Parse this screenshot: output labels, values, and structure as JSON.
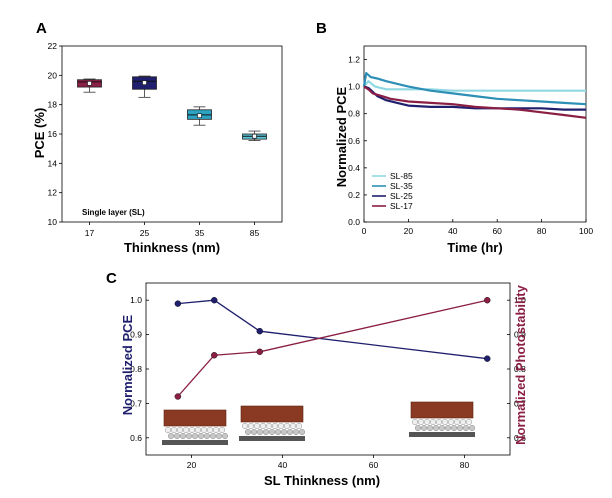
{
  "chart_data": [
    {
      "panel": "A",
      "type": "box",
      "xlabel": "Thinkness (nm)",
      "ylabel": "PCE (%)",
      "annotation": "Single layer (SL)",
      "categories": [
        "17",
        "25",
        "35",
        "85"
      ],
      "ylim": [
        10,
        22
      ],
      "yticks": [
        "10",
        "12",
        "14",
        "16",
        "18",
        "20",
        "22"
      ],
      "boxes": [
        {
          "q1": 19.2,
          "median": 19.55,
          "q3": 19.7,
          "whisker_low": 18.85,
          "whisker_high": 19.75,
          "mean": 19.45,
          "color": "#8b1e45"
        },
        {
          "q1": 19.05,
          "median": 19.6,
          "q3": 19.9,
          "whisker_low": 18.5,
          "whisker_high": 19.95,
          "mean": 19.5,
          "color": "#1f1f6e"
        },
        {
          "q1": 17.0,
          "median": 17.3,
          "q3": 17.65,
          "whisker_low": 16.6,
          "whisker_high": 17.85,
          "mean": 17.25,
          "color": "#2da3c4"
        },
        {
          "q1": 15.65,
          "median": 15.85,
          "q3": 16.0,
          "whisker_low": 15.55,
          "whisker_high": 16.2,
          "mean": 15.85,
          "color": "#5bc4d6"
        }
      ]
    },
    {
      "panel": "B",
      "type": "line",
      "xlabel": "Time (hr)",
      "ylabel": "Normalized PCE",
      "xlim": [
        0,
        100
      ],
      "ylim": [
        0,
        1.3
      ],
      "xticks": [
        "0",
        "20",
        "40",
        "60",
        "80",
        "100"
      ],
      "yticks": [
        "0.0",
        "0.2",
        "0.4",
        "0.6",
        "0.8",
        "1.0",
        "1.2"
      ],
      "legend_position": "bottom-left",
      "series": [
        {
          "name": "SL-85",
          "color": "#8fd8e3",
          "x": [
            0,
            2,
            5,
            10,
            20,
            30,
            40,
            50,
            60,
            70,
            80,
            90,
            100
          ],
          "y": [
            1.0,
            1.04,
            1.0,
            0.98,
            0.98,
            0.98,
            0.97,
            0.97,
            0.97,
            0.97,
            0.97,
            0.97,
            0.97
          ]
        },
        {
          "name": "SL-35",
          "color": "#2d8fb5",
          "x": [
            0,
            1,
            3,
            6,
            10,
            20,
            30,
            40,
            50,
            60,
            70,
            80,
            90,
            100
          ],
          "y": [
            1.0,
            1.1,
            1.07,
            1.06,
            1.04,
            1.0,
            0.97,
            0.95,
            0.93,
            0.91,
            0.9,
            0.89,
            0.88,
            0.87
          ]
        },
        {
          "name": "SL-25",
          "color": "#1f1f6e",
          "x": [
            0,
            2,
            4,
            6,
            10,
            15,
            20,
            30,
            40,
            50,
            60,
            70,
            80,
            90,
            100
          ],
          "y": [
            1.0,
            0.99,
            0.96,
            0.93,
            0.9,
            0.88,
            0.86,
            0.85,
            0.85,
            0.84,
            0.84,
            0.84,
            0.84,
            0.83,
            0.83
          ]
        },
        {
          "name": "SL-17",
          "color": "#8b1e45",
          "x": [
            0,
            2,
            4,
            8,
            12,
            20,
            30,
            40,
            50,
            60,
            70,
            80,
            90,
            100
          ],
          "y": [
            1.0,
            0.98,
            0.95,
            0.93,
            0.91,
            0.89,
            0.88,
            0.87,
            0.85,
            0.84,
            0.83,
            0.81,
            0.79,
            0.77
          ]
        }
      ]
    },
    {
      "panel": "C",
      "type": "line",
      "xlabel": "SL Thinkness (nm)",
      "ylabel_left": "Normalized PCE",
      "ylabel_right": "Normalized Photostability",
      "xlim": [
        10,
        90
      ],
      "ylim_left": [
        0.55,
        1.05
      ],
      "ylim_right": [
        0.55,
        1.05
      ],
      "xticks": [
        "20",
        "40",
        "60",
        "80"
      ],
      "yticks_left": [
        "0.6",
        "0.7",
        "0.8",
        "0.9",
        "1.0"
      ],
      "yticks_right": [
        "0.6",
        "0.7",
        "0.8",
        "0.9",
        "1.0"
      ],
      "series": [
        {
          "axis": "left",
          "color": "#1f1f6e",
          "x": [
            17,
            25,
            35,
            85
          ],
          "y": [
            0.99,
            1.0,
            0.91,
            0.83
          ]
        },
        {
          "axis": "right",
          "color": "#8b1e45",
          "x": [
            17,
            25,
            35,
            85
          ],
          "y": [
            0.72,
            0.84,
            0.85,
            1.0
          ]
        }
      ]
    }
  ]
}
